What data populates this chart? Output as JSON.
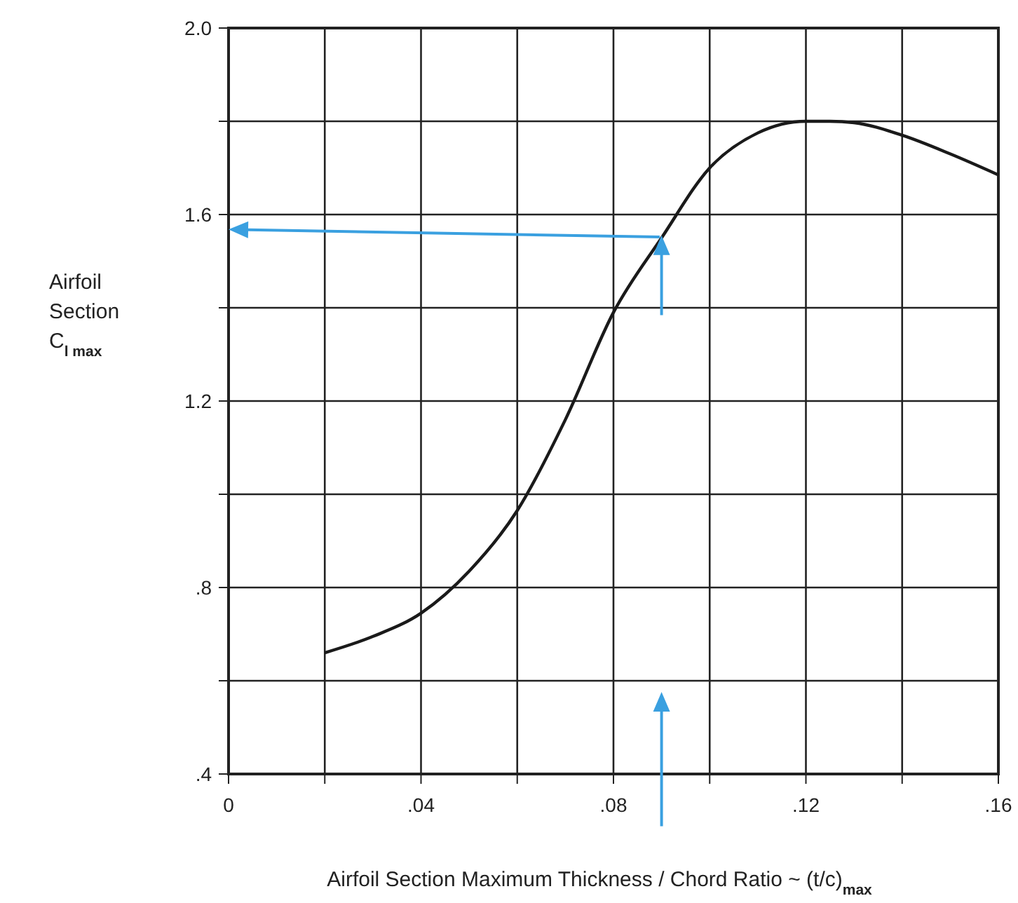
{
  "chart_data": {
    "type": "line",
    "xlabel": "Airfoil Section  Maximum Thickness / Chord Ratio ~ (t/c)$_{max}$",
    "ylabel": "Airfoil Section C$_{l max}$",
    "xlim": [
      0,
      0.16
    ],
    "ylim": [
      0.4,
      2.0
    ],
    "xticks": [
      {
        "value": 0,
        "label": "0"
      },
      {
        "value": 0.02,
        "label": null
      },
      {
        "value": 0.04,
        "label": ".04"
      },
      {
        "value": 0.06,
        "label": null
      },
      {
        "value": 0.08,
        "label": ".08"
      },
      {
        "value": 0.1,
        "label": null
      },
      {
        "value": 0.12,
        "label": ".12"
      },
      {
        "value": 0.14,
        "label": null
      },
      {
        "value": 0.16,
        "label": ".16"
      }
    ],
    "yticks": [
      {
        "value": 0.4,
        "label": ".4"
      },
      {
        "value": 0.6,
        "label": null
      },
      {
        "value": 0.8,
        "label": ".8"
      },
      {
        "value": 1.0,
        "label": null
      },
      {
        "value": 1.2,
        "label": "1.2"
      },
      {
        "value": 1.4,
        "label": null
      },
      {
        "value": 1.6,
        "label": "1.6"
      },
      {
        "value": 1.8,
        "label": null
      },
      {
        "value": 2.0,
        "label": "2.0"
      }
    ],
    "grid": true,
    "marker": "none",
    "line_style": "solid",
    "series": [
      {
        "color": "#1a1a1a",
        "x": [
          0.02,
          0.03,
          0.04,
          0.05,
          0.06,
          0.07,
          0.08,
          0.09,
          0.1,
          0.11,
          0.12,
          0.125,
          0.13,
          0.14,
          0.15,
          0.16
        ],
        "values": [
          0.66,
          0.695,
          0.745,
          0.835,
          0.965,
          1.16,
          1.39,
          1.55,
          1.7,
          1.775,
          1.8,
          1.8,
          1.797,
          1.77,
          1.73,
          1.685
        ]
      }
    ]
  }
}
